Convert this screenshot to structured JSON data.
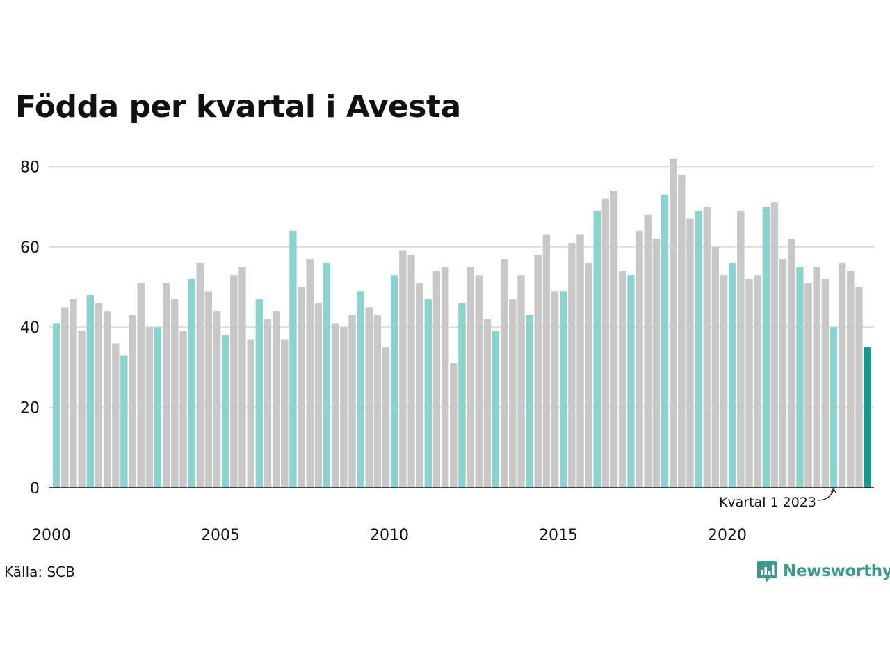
{
  "chart_data": {
    "type": "bar",
    "title": "Födda per kvartal i Avesta",
    "xlabel": "",
    "ylabel": "",
    "ylim": [
      0,
      85
    ],
    "yticks": [
      0,
      20,
      40,
      60,
      80
    ],
    "xtick_labels": [
      "2000",
      "2005",
      "2010",
      "2015",
      "2020"
    ],
    "grid": true,
    "start_year": 2000,
    "values": [
      41,
      45,
      47,
      39,
      48,
      46,
      44,
      36,
      33,
      43,
      51,
      40,
      40,
      51,
      47,
      39,
      52,
      56,
      49,
      44,
      38,
      53,
      55,
      37,
      47,
      42,
      44,
      37,
      64,
      50,
      57,
      46,
      56,
      41,
      40,
      43,
      49,
      45,
      43,
      35,
      53,
      59,
      58,
      51,
      47,
      54,
      55,
      31,
      46,
      55,
      53,
      42,
      39,
      57,
      47,
      53,
      43,
      58,
      63,
      49,
      49,
      61,
      63,
      56,
      69,
      72,
      74,
      54,
      53,
      64,
      68,
      62,
      73,
      82,
      78,
      67,
      69,
      70,
      60,
      53,
      56,
      69,
      52,
      53,
      70,
      71,
      57,
      62,
      55,
      51,
      55,
      52,
      40,
      56,
      54,
      50,
      35
    ],
    "annotation": "Kvartal 1 2023",
    "colors": {
      "q1": "#8dd3cd",
      "other": "#c8c8c8",
      "latest": "#17998b",
      "grid": "#dddddd",
      "axis": "#111111"
    }
  },
  "source": "Källa: SCB",
  "brand": {
    "name": "Newsworthy",
    "color": "#3a9a8e",
    "icon": "bar-chart-speech-bubble-icon"
  }
}
